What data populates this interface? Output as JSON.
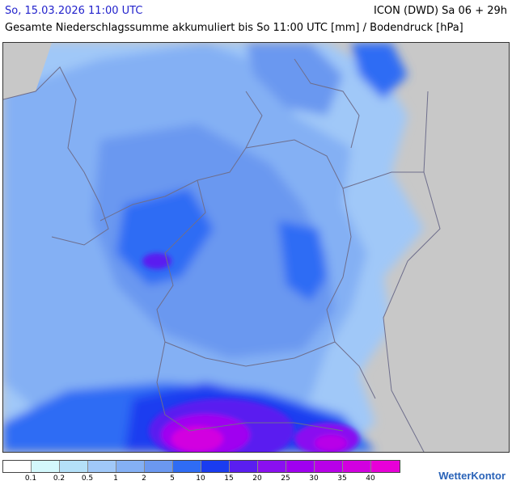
{
  "header": {
    "date_time": "So, 15.03.2026 11:00 UTC",
    "model_run": "ICON (DWD) Sa 06 + 29h",
    "subtitle": "Gesamte Niederschlagssumme akkumuliert bis So 11:00 UTC [mm] / Bodendruck [hPa]"
  },
  "map": {
    "background_color": "#c8c8c8",
    "border_color": "#6e6e8c",
    "precip_base_color": "#7b9cf0"
  },
  "legend": {
    "colors": [
      "#ffffff",
      "#d4f8fc",
      "#b4e0f8",
      "#a0c8f8",
      "#84b0f4",
      "#6b98f0",
      "#2f6cf4",
      "#1a3cf0",
      "#5a1ef0",
      "#8a10f0",
      "#a000f0",
      "#b800e8",
      "#d200e0",
      "#e800d8"
    ],
    "labels": [
      "0.1",
      "0.2",
      "0.5",
      "1",
      "2",
      "5",
      "10",
      "15",
      "20",
      "25",
      "30",
      "35",
      "40"
    ]
  },
  "branding": {
    "name": "WetterKontor"
  }
}
